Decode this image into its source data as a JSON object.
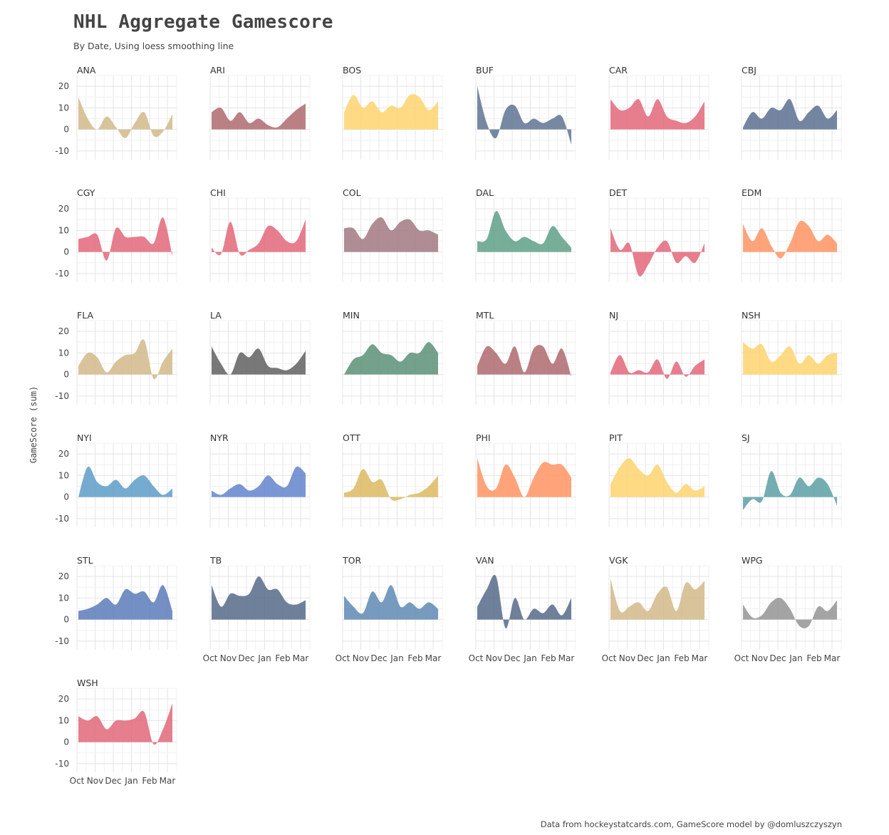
{
  "title": "NHL Aggregate Gamescore",
  "subtitle": "By Date, Using loess smoothing line",
  "caption": "Data from hockeystatcards.com, GameScore model by @domluszczyszyn",
  "ylabel": "GameScore (sum)",
  "chart_data": {
    "type": "area",
    "layout": "small-multiples",
    "ylim": [
      -14,
      25
    ],
    "yticks": [
      -10,
      0,
      10,
      20
    ],
    "xticks": [
      "Oct",
      "Nov",
      "Dec",
      "Jan",
      "Feb",
      "Mar"
    ],
    "x": [
      "Oct",
      "Oct",
      "Nov",
      "Nov",
      "Dec",
      "Dec",
      "Jan",
      "Jan",
      "Feb",
      "Feb",
      "Mar"
    ],
    "grid": true,
    "colors": {
      "tan": "#D2B88A",
      "maroon": "#AE6A6E",
      "gold": "#FFD36E",
      "navy": "#5F7393",
      "red": "#E2677A",
      "slate": "#5C7090",
      "mauve": "#A27882",
      "green": "#5EA088",
      "orange": "#FF9463",
      "gray": "#606060",
      "darkgreen": "#5A9078",
      "blue": "#5E9CC8",
      "royal": "#6484CC",
      "mustard": "#DCBA60",
      "teal": "#5CA0A4",
      "steel": "#5C7BB8",
      "charcoal": "#566A88",
      "steelblue": "#5E8AB4",
      "silver": "#949494"
    },
    "series": [
      {
        "label": "ANA",
        "color": "tan",
        "values": [
          15,
          5,
          0,
          6,
          1,
          -4,
          3,
          8,
          -3,
          -1,
          7
        ]
      },
      {
        "label": "ARI",
        "color": "maroon",
        "values": [
          8,
          10,
          4,
          8,
          3,
          5,
          2,
          1,
          5,
          9,
          12
        ]
      },
      {
        "label": "BOS",
        "color": "gold",
        "values": [
          8,
          16,
          10,
          13,
          8,
          11,
          10,
          16,
          15,
          9,
          13
        ]
      },
      {
        "label": "BUF",
        "color": "navy",
        "values": [
          20,
          3,
          -4,
          9,
          11,
          3,
          5,
          3,
          5,
          6,
          -7
        ]
      },
      {
        "label": "CAR",
        "color": "red",
        "values": [
          14,
          9,
          10,
          14,
          6,
          14,
          6,
          4,
          3,
          6,
          13
        ]
      },
      {
        "label": "CBJ",
        "color": "slate",
        "values": [
          1,
          8,
          5,
          10,
          9,
          14,
          4,
          8,
          11,
          5,
          9
        ]
      },
      {
        "label": "CGY",
        "color": "red",
        "values": [
          6,
          7,
          8,
          -4,
          11,
          7,
          7,
          7,
          4,
          16,
          -2
        ]
      },
      {
        "label": "CHI",
        "color": "red",
        "values": [
          2,
          -1,
          14,
          -1,
          1,
          4,
          12,
          10,
          5,
          5,
          15
        ]
      },
      {
        "label": "COL",
        "color": "mauve",
        "values": [
          11,
          11,
          6,
          13,
          16,
          10,
          14,
          15,
          10,
          10,
          8
        ]
      },
      {
        "label": "DAL",
        "color": "green",
        "values": [
          5,
          6,
          19,
          10,
          5,
          7,
          5,
          4,
          12,
          7,
          2
        ]
      },
      {
        "label": "DET",
        "color": "red",
        "values": [
          11,
          1,
          4,
          -11,
          -6,
          2,
          5,
          -5,
          -2,
          -5,
          4
        ]
      },
      {
        "label": "EDM",
        "color": "orange",
        "values": [
          13,
          5,
          11,
          3,
          -3,
          4,
          14,
          12,
          5,
          8,
          4
        ]
      },
      {
        "label": "FLA",
        "color": "tan",
        "values": [
          4,
          10,
          8,
          1,
          6,
          9,
          10,
          16,
          -2,
          6,
          12
        ]
      },
      {
        "label": "LA",
        "color": "gray",
        "values": [
          13,
          5,
          0,
          10,
          8,
          12,
          4,
          3,
          2,
          5,
          11
        ]
      },
      {
        "label": "MIN",
        "color": "darkgreen",
        "values": [
          0,
          7,
          9,
          14,
          10,
          9,
          6,
          10,
          10,
          15,
          10
        ]
      },
      {
        "label": "MTL",
        "color": "maroon",
        "values": [
          4,
          13,
          10,
          5,
          13,
          1,
          12,
          13,
          5,
          12,
          -1
        ]
      },
      {
        "label": "NJ",
        "color": "red",
        "values": [
          1,
          9,
          1,
          2,
          1,
          7,
          -2,
          6,
          -1,
          4,
          7
        ]
      },
      {
        "label": "NSH",
        "color": "gold",
        "values": [
          15,
          12,
          14,
          6,
          9,
          13,
          5,
          9,
          5,
          9,
          10
        ]
      },
      {
        "label": "NYI",
        "color": "blue",
        "values": [
          0,
          14,
          7,
          5,
          8,
          4,
          8,
          10,
          5,
          1,
          4
        ]
      },
      {
        "label": "NYR",
        "color": "royal",
        "values": [
          3,
          1,
          4,
          6,
          3,
          5,
          10,
          6,
          5,
          14,
          11
        ]
      },
      {
        "label": "OTT",
        "color": "mustard",
        "values": [
          2,
          4,
          13,
          7,
          8,
          -1,
          -1,
          1,
          2,
          5,
          10
        ]
      },
      {
        "label": "PHI",
        "color": "orange",
        "values": [
          18,
          5,
          4,
          15,
          9,
          0,
          9,
          16,
          15,
          15,
          9
        ]
      },
      {
        "label": "PIT",
        "color": "gold",
        "values": [
          6,
          14,
          18,
          13,
          10,
          15,
          7,
          2,
          6,
          3,
          5
        ]
      },
      {
        "label": "SJ",
        "color": "teal",
        "values": [
          -6,
          -1,
          -2,
          12,
          2,
          1,
          9,
          5,
          9,
          6,
          -4
        ]
      },
      {
        "label": "STL",
        "color": "steel",
        "values": [
          4,
          5,
          7,
          10,
          7,
          14,
          12,
          13,
          8,
          16,
          4
        ]
      },
      {
        "label": "TB",
        "color": "charcoal",
        "values": [
          16,
          6,
          12,
          11,
          12,
          20,
          14,
          14,
          8,
          7,
          9
        ]
      },
      {
        "label": "TOR",
        "color": "steelblue",
        "values": [
          11,
          6,
          3,
          13,
          8,
          16,
          6,
          8,
          5,
          8,
          5
        ]
      },
      {
        "label": "VAN",
        "color": "charcoal",
        "values": [
          6,
          14,
          20,
          -4,
          10,
          0,
          5,
          3,
          7,
          2,
          10
        ]
      },
      {
        "label": "VGK",
        "color": "tan",
        "values": [
          19,
          4,
          6,
          8,
          4,
          12,
          15,
          4,
          17,
          14,
          18
        ]
      },
      {
        "label": "WPG",
        "color": "silver",
        "values": [
          7,
          1,
          2,
          8,
          10,
          5,
          -3,
          -3,
          6,
          4,
          9
        ]
      },
      {
        "label": "WSH",
        "color": "red",
        "values": [
          12,
          10,
          12,
          6,
          10,
          10,
          11,
          14,
          -1,
          6,
          18
        ]
      }
    ]
  }
}
